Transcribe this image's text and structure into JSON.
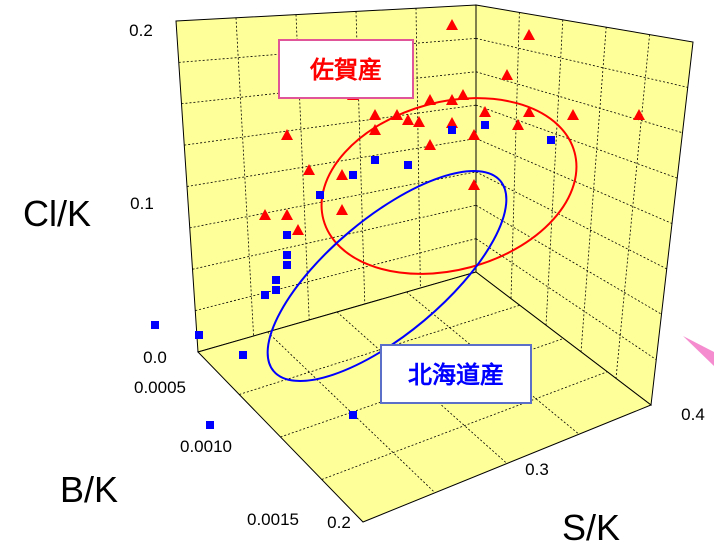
{
  "chart_data": {
    "type": "scatter",
    "projection": "3d",
    "grid": true,
    "axes": {
      "cl_k": {
        "label": "Cl/K",
        "range": [
          0.0,
          0.2
        ],
        "ticks": [
          "0.2",
          "0.1",
          "0.0"
        ]
      },
      "b_k": {
        "label": "B/K",
        "ticks": [
          "0.0005",
          "0.0010",
          "0.0015"
        ]
      },
      "s_k": {
        "label": "S/K",
        "ticks": [
          "0.2",
          "0.3",
          "0.4"
        ]
      }
    },
    "series": [
      {
        "name": "佐賀産",
        "marker": "triangle",
        "color": "#ff0000",
        "label_box_color": "#e0559a",
        "points": [
          [
            0.52,
            0.17
          ],
          [
            0.59,
            0.16
          ],
          [
            0.57,
            0.12
          ],
          [
            0.46,
            0.14
          ],
          [
            0.53,
            0.1
          ],
          [
            0.5,
            0.095
          ],
          [
            0.52,
            0.095
          ],
          [
            0.43,
            0.1
          ],
          [
            0.45,
            0.08
          ],
          [
            0.47,
            0.08
          ],
          [
            0.48,
            0.075
          ],
          [
            0.49,
            0.073
          ],
          [
            0.52,
            0.072
          ],
          [
            0.55,
            0.083
          ],
          [
            0.59,
            0.083
          ],
          [
            0.63,
            0.08
          ],
          [
            0.69,
            0.08
          ],
          [
            0.45,
            0.065
          ],
          [
            0.54,
            0.06
          ],
          [
            0.37,
            0.06
          ],
          [
            0.39,
            0.025
          ],
          [
            0.42,
            0.02
          ],
          [
            0.35,
            -0.02
          ],
          [
            0.37,
            -0.02
          ],
          [
            0.38,
            -0.035
          ],
          [
            0.42,
            -0.015
          ],
          [
            0.54,
            0.01
          ],
          [
            0.58,
            0.07
          ],
          [
            0.5,
            0.05
          ]
        ]
      },
      {
        "name": "北海道産",
        "marker": "square",
        "color": "#0000ff",
        "label_box_color": "#5b6fc9",
        "points": [
          [
            0.37,
            -0.04
          ],
          [
            0.37,
            -0.07
          ],
          [
            0.36,
            -0.095
          ],
          [
            0.25,
            -0.13
          ],
          [
            0.29,
            -0.14
          ],
          [
            0.33,
            -0.16
          ],
          [
            0.35,
            -0.1
          ],
          [
            0.36,
            -0.085
          ],
          [
            0.4,
            0.0
          ],
          [
            0.43,
            0.02
          ],
          [
            0.45,
            0.035
          ],
          [
            0.48,
            0.03
          ],
          [
            0.52,
            0.065
          ],
          [
            0.55,
            0.07
          ],
          [
            0.61,
            0.055
          ],
          [
            0.3,
            -0.23
          ],
          [
            0.43,
            -0.22
          ],
          [
            0.37,
            -0.06
          ]
        ]
      }
    ]
  }
}
